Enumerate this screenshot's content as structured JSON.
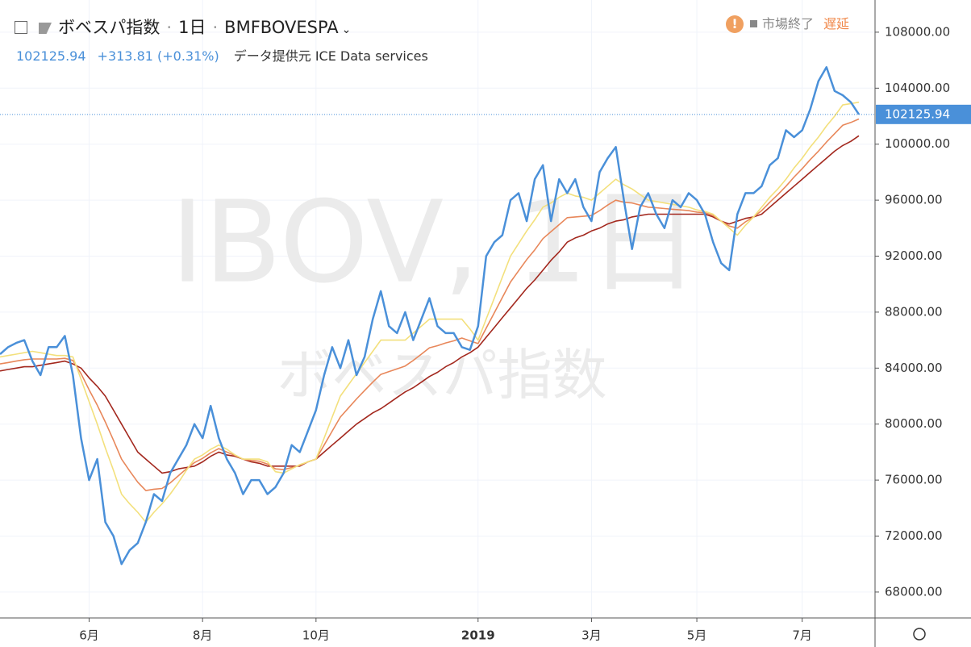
{
  "header": {
    "name": "ボベスパ指数",
    "interval": "1日",
    "symbol": "BMFBOVESPA",
    "price": "102125.94",
    "change": "+313.81 (+0.31%)",
    "source": "データ提供元 ICE Data services",
    "status": "市場終了",
    "delay": "遅延"
  },
  "watermark": {
    "line1": "IBOV, 1日",
    "line2": "ボベスパ指数"
  },
  "chart_data": {
    "type": "line",
    "categories": [
      null,
      null,
      null,
      null,
      null,
      null,
      null,
      null,
      null,
      null,
      null,
      "6月",
      null,
      null,
      null,
      null,
      null,
      null,
      null,
      null,
      null,
      null,
      null,
      null,
      null,
      "8月",
      null,
      null,
      null,
      null,
      null,
      null,
      null,
      null,
      null,
      null,
      null,
      null,
      null,
      "10月",
      null,
      null,
      null,
      null,
      null,
      null,
      null,
      null,
      null,
      null,
      null,
      null,
      null,
      null,
      null,
      null,
      null,
      null,
      null,
      "2019",
      null,
      null,
      null,
      null,
      null,
      null,
      null,
      null,
      null,
      null,
      null,
      null,
      null,
      "3月",
      null,
      null,
      null,
      null,
      null,
      null,
      null,
      null,
      null,
      null,
      null,
      null,
      "5月",
      null,
      null,
      null,
      null,
      null,
      null,
      null,
      null,
      null,
      null,
      null,
      null,
      "7月",
      null,
      null,
      null,
      null,
      null,
      null,
      null
    ],
    "series": [
      {
        "color": "#4a90d9",
        "values": [
          85000,
          85500,
          85800,
          86000,
          84500,
          83500,
          85500,
          85500,
          86300,
          83500,
          79000,
          76000,
          77500,
          73000,
          72000,
          70000,
          71000,
          71500,
          73000,
          75000,
          74500,
          76500,
          77500,
          78500,
          80000,
          79000,
          81300,
          79000,
          77500,
          76500,
          75000,
          76000,
          76000,
          75000,
          75500,
          76500,
          78500,
          78000,
          79500,
          81000,
          83500,
          85500,
          84000,
          86000,
          83500,
          84800,
          87500,
          89500,
          87000,
          86500,
          88000,
          86000,
          87500,
          89000,
          87000,
          86500,
          86500,
          85500,
          85300,
          87000,
          92000,
          93000,
          93500,
          96000,
          96500,
          94500,
          97500,
          98500,
          94500,
          97500,
          96500,
          97500,
          95500,
          94500,
          98000,
          99000,
          99800,
          96000,
          92500,
          95500,
          96500,
          95000,
          94000,
          96000,
          95500,
          96500,
          96000,
          95000,
          93000,
          91500,
          91000,
          95000,
          96500,
          96500,
          97000,
          98500,
          99000,
          101000,
          100500,
          101000,
          102500,
          104500,
          105500,
          103800,
          103500,
          103000,
          102125.94
        ]
      },
      {
        "color": "#f3e07c",
        "values": [
          84800,
          84900,
          85000,
          85100,
          85200,
          85100,
          85000,
          84900,
          84900,
          84800,
          83200,
          81600,
          80000,
          78300,
          76700,
          75000,
          74300,
          73700,
          73000,
          73700,
          74300,
          75000,
          75800,
          76700,
          77500,
          77800,
          78200,
          78500,
          78200,
          77800,
          77500,
          77500,
          77500,
          77300,
          76600,
          76500,
          76800,
          77100,
          77300,
          77500,
          79000,
          80500,
          82000,
          82800,
          83600,
          84400,
          85200,
          86000,
          86000,
          86000,
          86000,
          86500,
          87000,
          87500,
          87500,
          87500,
          87500,
          87500,
          86800,
          86000,
          87500,
          89000,
          90500,
          92000,
          92900,
          93800,
          94600,
          95500,
          95800,
          96200,
          96500,
          96300,
          96200,
          96000,
          96500,
          97000,
          97500,
          97100,
          96800,
          96400,
          96000,
          95900,
          95800,
          95700,
          95600,
          95500,
          95300,
          95200,
          95000,
          94500,
          94000,
          93500,
          94200,
          94800,
          95500,
          96200,
          96800,
          97500,
          98300,
          99000,
          99800,
          100500,
          101300,
          102000,
          102800,
          102900,
          103000
        ]
      },
      {
        "color": "#e8875a",
        "values": [
          84300,
          84400,
          84500,
          84600,
          84650,
          84650,
          84650,
          84650,
          84700,
          84550,
          83600,
          82450,
          81350,
          80150,
          78850,
          77500,
          76650,
          75850,
          75250,
          75350,
          75400,
          75800,
          76300,
          76800,
          77250,
          77550,
          77950,
          78250,
          78000,
          77750,
          77500,
          77400,
          77350,
          77150,
          76800,
          76750,
          76900,
          77050,
          77300,
          77500,
          78500,
          79500,
          80500,
          81150,
          81800,
          82400,
          83000,
          83550,
          83750,
          83950,
          84150,
          84550,
          85000,
          85450,
          85600,
          85800,
          85950,
          86150,
          85950,
          85750,
          86850,
          87950,
          89050,
          90150,
          90950,
          91750,
          92450,
          93250,
          93750,
          94250,
          94750,
          94800,
          94850,
          94900,
          95250,
          95650,
          96000,
          95850,
          95800,
          95650,
          95500,
          95450,
          95400,
          95350,
          95300,
          95250,
          95150,
          95100,
          94900,
          94500,
          94150,
          94000,
          94450,
          94800,
          95250,
          95850,
          96400,
          97000,
          97650,
          98250,
          98900,
          99500,
          100150,
          100750,
          101350,
          101550,
          101800
        ]
      },
      {
        "color": "#a3281e",
        "values": [
          83800,
          83900,
          84000,
          84100,
          84100,
          84200,
          84300,
          84400,
          84500,
          84300,
          84000,
          83300,
          82700,
          82000,
          81000,
          80000,
          79000,
          78000,
          77500,
          77000,
          76500,
          76600,
          76800,
          76900,
          77000,
          77300,
          77700,
          78000,
          77800,
          77700,
          77500,
          77300,
          77200,
          77000,
          77000,
          77000,
          77000,
          77000,
          77300,
          77500,
          78000,
          78500,
          79000,
          79500,
          80000,
          80400,
          80800,
          81100,
          81500,
          81900,
          82300,
          82600,
          83000,
          83400,
          83700,
          84100,
          84400,
          84800,
          85100,
          85500,
          86200,
          86900,
          87600,
          88300,
          89000,
          89700,
          90300,
          91000,
          91700,
          92300,
          93000,
          93300,
          93500,
          93800,
          94000,
          94300,
          94500,
          94600,
          94800,
          94900,
          95000,
          95000,
          95000,
          95000,
          95000,
          95000,
          95000,
          95000,
          94800,
          94500,
          94300,
          94500,
          94700,
          94800,
          95000,
          95500,
          96000,
          96500,
          97000,
          97500,
          98000,
          98500,
          99000,
          99500,
          99900,
          100200,
          100600
        ]
      }
    ],
    "ylim": [
      66150,
      110300
    ],
    "yticks": [
      {
        "value": 68000,
        "label": "68000.00"
      },
      {
        "value": 72000,
        "label": "72000.00"
      },
      {
        "value": 76000,
        "label": "76000.00"
      },
      {
        "value": 80000,
        "label": "80000.00"
      },
      {
        "value": 84000,
        "label": "84000.00"
      },
      {
        "value": 88000,
        "label": "88000.00"
      },
      {
        "value": 92000,
        "label": "92000.00"
      },
      {
        "value": 96000,
        "label": "96000.00"
      },
      {
        "value": 100000,
        "label": "100000.00"
      },
      {
        "value": 104000,
        "label": "104000.00"
      },
      {
        "value": 108000,
        "label": "108000.00"
      }
    ],
    "grid": true
  }
}
